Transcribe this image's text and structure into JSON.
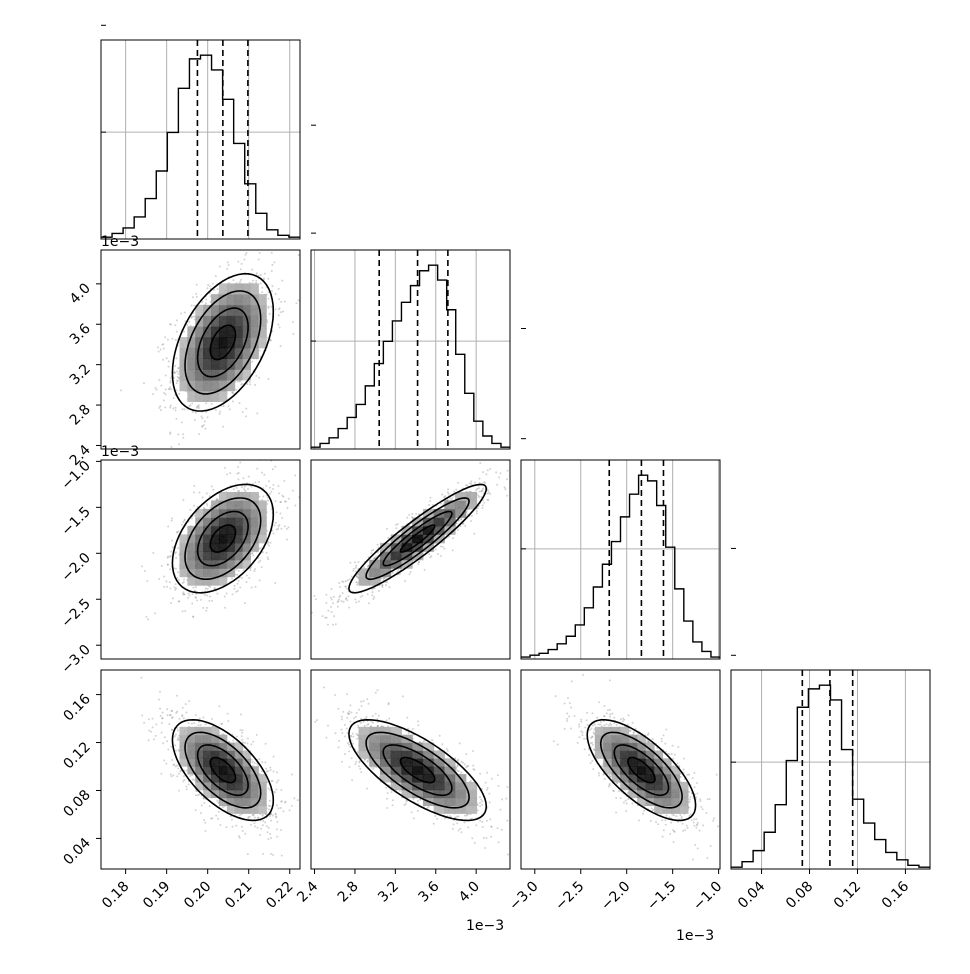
{
  "chart_data": {
    "type": "scatter",
    "subtype": "corner-plot",
    "variables": [
      {
        "range": [
          0.174,
          0.2225
        ],
        "ticks": [
          0.18,
          0.19,
          0.2,
          0.21,
          0.22
        ],
        "tick_labels": [
          "0.18",
          "0.19",
          "0.20",
          "0.21",
          "0.22"
        ],
        "offset_text": "",
        "quantiles": [
          0.1975,
          0.2037,
          0.2098
        ]
      },
      {
        "range": [
          2.365,
          4.335
        ],
        "ticks": [
          2.4,
          2.8,
          3.2,
          3.6,
          4.0
        ],
        "tick_labels": [
          "2.4",
          "2.8",
          "3.2",
          "3.6",
          "4.0"
        ],
        "offset_text": "1e−3",
        "quantiles": [
          3.04,
          3.42,
          3.72
        ]
      },
      {
        "range": [
          -3.15,
          -0.985
        ],
        "ticks": [
          -3.0,
          -2.5,
          -2.0,
          -1.5,
          -1.0
        ],
        "tick_labels": [
          "−3.0",
          "−2.5",
          "−2.0",
          "−1.5",
          "−1.0"
        ],
        "offset_text": "1e−3",
        "quantiles": [
          -2.19,
          -1.84,
          -1.6
        ]
      },
      {
        "range": [
          0.0145,
          0.1805
        ],
        "ticks": [
          0.04,
          0.08,
          0.12,
          0.16
        ],
        "tick_labels": [
          "0.04",
          "0.08",
          "0.12",
          "0.16"
        ],
        "offset_text": "",
        "quantiles": [
          0.074,
          0.097,
          0.116
        ]
      }
    ],
    "histograms": [
      [
        1,
        3,
        6,
        12,
        22,
        37,
        58,
        82,
        98,
        100,
        92,
        76,
        52,
        30,
        14,
        5,
        2,
        1
      ],
      [
        1,
        3,
        6,
        11,
        17,
        24,
        34,
        46,
        58,
        69,
        79,
        88,
        96,
        99,
        91,
        75,
        51,
        30,
        15,
        7,
        3,
        1
      ],
      [
        1,
        2,
        3,
        5,
        8,
        12,
        18,
        27,
        38,
        50,
        62,
        75,
        87,
        97,
        94,
        81,
        59,
        37,
        20,
        9,
        4,
        1
      ],
      [
        1,
        4,
        10,
        20,
        35,
        59,
        88,
        98,
        100,
        92,
        65,
        38,
        25,
        16,
        9,
        5,
        2,
        1
      ]
    ],
    "correlations": {
      "1-0": 0.45,
      "2-0": 0.45,
      "2-1": 0.92,
      "3-0": -0.6,
      "3-1": -0.72,
      "3-2": -0.7
    },
    "grid": true,
    "colors": {
      "line": "#000000",
      "points": "#808080",
      "grid": "#b0b0b0"
    }
  }
}
